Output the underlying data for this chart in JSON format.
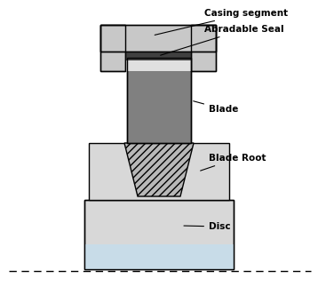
{
  "fig_width": 3.58,
  "fig_height": 3.23,
  "dpi": 100,
  "bg_color": "#ffffff",
  "colors": {
    "casing_outer": "#c8c8c8",
    "casing_inner": "#b0b0b0",
    "abradable_seal": "#404040",
    "blade": "#808080",
    "blade_channel": "#a0a0a0",
    "blade_root_body": "#d8d8d8",
    "blade_root_slot": "#b8b8b8",
    "disc_body": "#d8d8d8",
    "disc_bottom": "#c8dce8",
    "outline": "#000000",
    "annotation_line": "#000000",
    "text_color": "#000000"
  },
  "labels": {
    "casing_segment": "Casing segment",
    "abradable_seal": "Abradable Seal",
    "blade": "Blade",
    "blade_root": "Blade Root",
    "disc": "Disc"
  },
  "dashed_line": true
}
